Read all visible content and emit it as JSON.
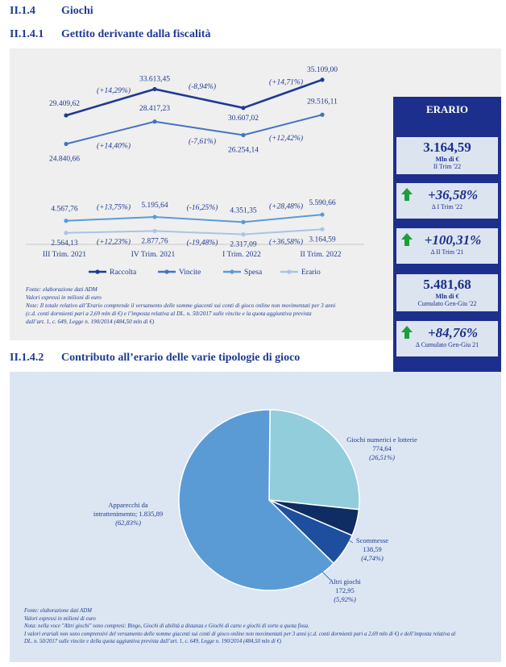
{
  "headings": {
    "h1_num": "II.1.4",
    "h1_text": "Giochi",
    "h2_num": "II.1.4.1",
    "h2_text": "Gettito derivante dalla fiscalità",
    "h3_num": "II.1.4.2",
    "h3_text": "Contributo all’erario delle varie tipologie di gioco"
  },
  "chart_data": [
    {
      "type": "line",
      "categories": [
        "III Trim. 2021",
        "IV Trim. 2021",
        "I Trim. 2022",
        "II Trim. 2022"
      ],
      "series": [
        {
          "name": "Raccolta",
          "values": [
            29409.62,
            33613.45,
            30607.02,
            35109.0
          ],
          "labels": [
            "29.409,62",
            "33.613,45",
            "30.607,02",
            "35.109,00"
          ],
          "changes": [
            "(+14,29%)",
            "(-8,94%)",
            "(+14,71%)"
          ],
          "color": "#1f3a93"
        },
        {
          "name": "Vincite",
          "values": [
            24840.66,
            28417.23,
            26254.14,
            29516.11
          ],
          "labels": [
            "24.840,66",
            "28.417,23",
            "26.254,14",
            "29.516,11"
          ],
          "changes": [
            "(+14,40%)",
            "(-7,61%)",
            "(+12,42%)"
          ],
          "color": "#4472c4"
        },
        {
          "name": "Spesa",
          "values": [
            4567.76,
            5195.64,
            4351.35,
            5590.66
          ],
          "labels": [
            "4.567,76",
            "5.195,64",
            "4.351,35",
            "5.590,66"
          ],
          "changes": [
            "(+13,75%)",
            "(-16,25%)",
            "(+28,48%)"
          ],
          "color": "#5b9bd5"
        },
        {
          "name": "Erario",
          "values": [
            2564.13,
            2877.76,
            2317.09,
            3164.59
          ],
          "labels": [
            "2.564,13",
            "2.877,76",
            "2.317,09",
            "3.164,59"
          ],
          "changes": [
            "(+12,23%)",
            "(-19,48%)",
            "(+36,58%)"
          ],
          "color": "#a9c4e6"
        }
      ],
      "legend": "bottom"
    },
    {
      "type": "pie",
      "slices": [
        {
          "name": "Giochi numerici e lotterie",
          "value": 774.64,
          "value_label": "774,64",
          "pct": 26.51,
          "pct_label": "(26,51%)",
          "color": "#92cddc"
        },
        {
          "name": "Scommesse",
          "value": 138.59,
          "value_label": "138,59",
          "pct": 4.74,
          "pct_label": "(4,74%)",
          "color": "#0f2d63"
        },
        {
          "name": "Altri giochi",
          "value": 172.95,
          "value_label": "172,95",
          "pct": 5.92,
          "pct_label": "(5,92%)",
          "color": "#1d4f9e"
        },
        {
          "name": "Apparecchi da intrattenimento;",
          "name_l1": "Apparecchi da",
          "name_l2": "intrattenimento;",
          "value": 1835.89,
          "value_label": "1.835,89",
          "pct": 62.83,
          "pct_label": "(62,83%)",
          "color": "#5b9bd5"
        }
      ]
    }
  ],
  "sidebar": {
    "title": "ERARIO",
    "box1": {
      "value": "3.164,59",
      "unit": "Mln di €",
      "period": "II Trim '22"
    },
    "box2": {
      "pct": "+36,58%",
      "label": "Δ I Trim '22"
    },
    "box3": {
      "pct": "+100,31%",
      "label": "Δ II Trim '21"
    },
    "box4": {
      "value": "5.481,68",
      "unit": "Mln di €",
      "period": "Cumulato Gen-Giu '22"
    },
    "box5": {
      "pct": "+84,76%",
      "label": "Δ Cumulato Gen-Giu 21"
    }
  },
  "notes1": {
    "l1": "Fonte: elaborazione dati ADM",
    "l2": "Valori espressi in milioni di euro",
    "l3": "Note: Il totale relativo all’Erario comprende il versamento delle somme giacenti sui conti di gioco online non movimentati per 3 anni",
    "l4": "(c.d. conti dormienti pari a 2,69 mln di €) e l’imposta relativa al DL. n. 50/2017 sulle vincite e la quota aggiuntiva prevista",
    "l5": "dall’art. 1, c. 649, Legge n. 190/2014 (484,50 mln di €)"
  },
  "notes2": {
    "l1": "Fonte: elaborazione dati ADM",
    "l2": "Valori espressi in milioni di euro",
    "l3": "Nota: nella voce \"Altri giochi\" sono compresi: Bingo, Giochi di abilità a distanza e Giochi di carte e giochi di sorte a quota fissa.",
    "l4": "I valori erariali non sono comprensivi del versamento delle somme giacenti sui conti di gioco online non movimentati per 3 anni (c.d. conti dormienti pari a 2,69 mln di €) e dell’imposta relativa al",
    "l5": "DL. n. 50/2017 sulle vincite e della quota aggiuntiva prevista dall’art. 1, c. 649, Legge n. 190/2014 (484,50 mln di €)"
  }
}
